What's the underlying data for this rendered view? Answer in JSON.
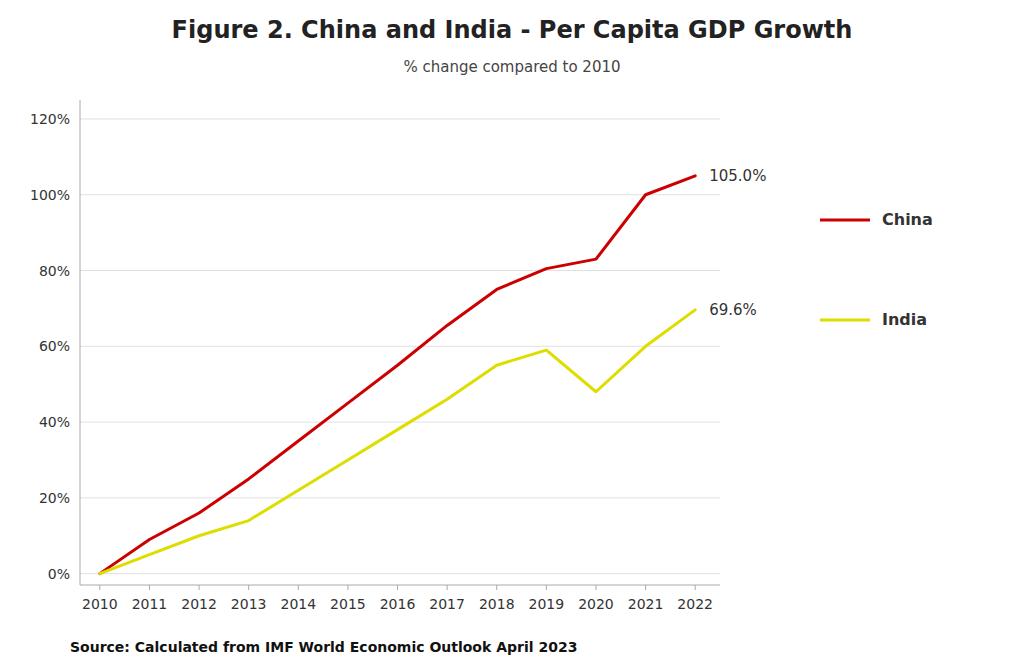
{
  "chart_data": {
    "type": "line",
    "title": "Figure 2. China and India - Per Capita GDP Growth",
    "subtitle": "% change compared to 2010",
    "source": "Source: Calculated from IMF World Economic Outlook April 2023",
    "x": [
      2010,
      2011,
      2012,
      2013,
      2014,
      2015,
      2016,
      2017,
      2018,
      2019,
      2020,
      2021,
      2022
    ],
    "series": [
      {
        "name": "China",
        "color": "#cc0000",
        "values": [
          0.0,
          9.0,
          16.0,
          25.0,
          35.0,
          45.0,
          55.0,
          65.5,
          75.0,
          80.5,
          83.0,
          100.0,
          105.0
        ]
      },
      {
        "name": "India",
        "color": "#dddd00",
        "values": [
          0.0,
          5.0,
          10.0,
          14.0,
          22.0,
          30.0,
          38.0,
          46.0,
          55.0,
          59.0,
          48.0,
          60.0,
          69.6
        ]
      }
    ],
    "annotations": [
      {
        "x": 2022,
        "y": 105.0,
        "text": "105.0%"
      },
      {
        "x": 2022,
        "y": 69.6,
        "text": "69.6%"
      }
    ],
    "xlim": [
      2009.6,
      2022.5
    ],
    "xticks": [
      2010,
      2011,
      2012,
      2013,
      2014,
      2015,
      2016,
      2017,
      2018,
      2019,
      2020,
      2021,
      2022
    ],
    "ylim": [
      -3,
      125
    ],
    "yticks": [
      {
        "value": 0,
        "label": "0%"
      },
      {
        "value": 20,
        "label": "20%"
      },
      {
        "value": 40,
        "label": "40%"
      },
      {
        "value": 60,
        "label": "60%"
      },
      {
        "value": 80,
        "label": "80%"
      },
      {
        "value": 100,
        "label": "100%"
      },
      {
        "value": 120,
        "label": "120%"
      }
    ],
    "grid": true,
    "legend": "right"
  }
}
